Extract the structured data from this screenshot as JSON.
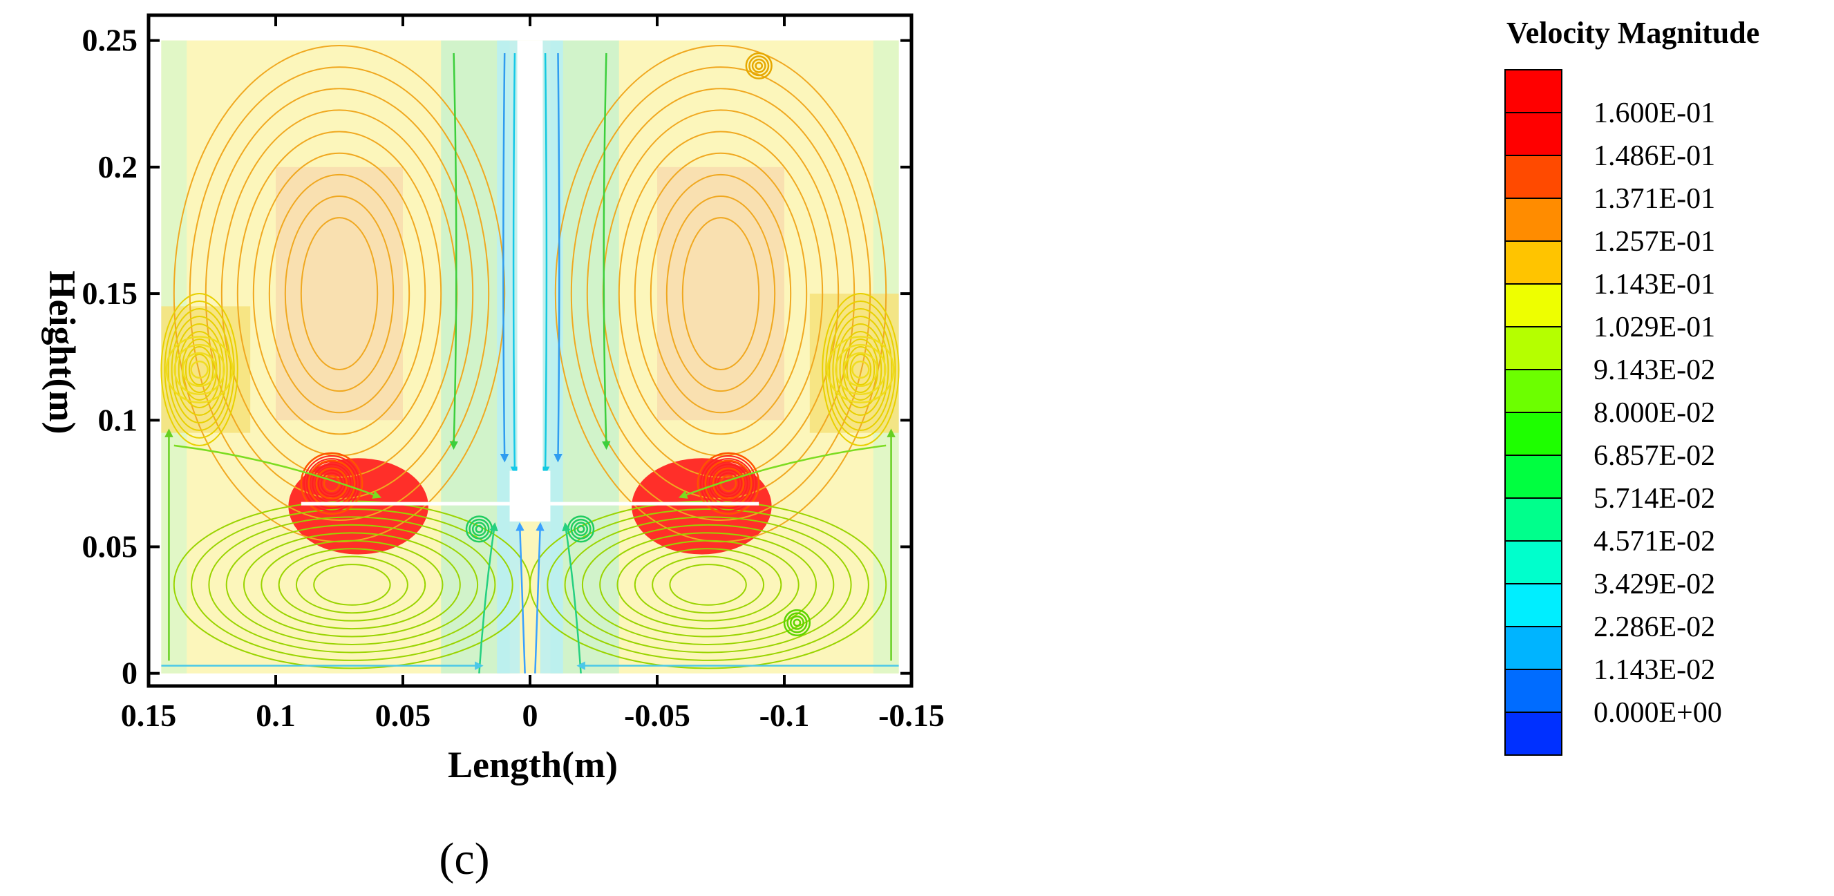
{
  "panel_label": "(c)",
  "chart_data": {
    "type": "heatmap",
    "subtype": "velocity-magnitude contour with streamlines",
    "xlabel": "Length(m)",
    "ylabel": "Height(m)",
    "xlim": [
      0.15,
      -0.15
    ],
    "ylim": [
      -0.005,
      0.26
    ],
    "x_ticks": [
      {
        "value": 0.15,
        "label": "0.15"
      },
      {
        "value": 0.1,
        "label": "0.1"
      },
      {
        "value": 0.05,
        "label": "0.05"
      },
      {
        "value": 0,
        "label": "0"
      },
      {
        "value": -0.05,
        "label": "-0.05"
      },
      {
        "value": -0.1,
        "label": "-0.1"
      },
      {
        "value": -0.15,
        "label": "-0.15"
      }
    ],
    "y_ticks": [
      {
        "value": 0,
        "label": "0"
      },
      {
        "value": 0.05,
        "label": "0.05"
      },
      {
        "value": 0.1,
        "label": "0.1"
      },
      {
        "value": 0.15,
        "label": "0.15"
      },
      {
        "value": 0.2,
        "label": "0.2"
      },
      {
        "value": 0.25,
        "label": "0.25"
      }
    ],
    "legend": {
      "title": "Velocity Magnitude",
      "placement": "right",
      "levels": [
        {
          "label": "1.600E-01",
          "color": "#ff0000"
        },
        {
          "label": "1.486E-01",
          "color": "#ff4a00"
        },
        {
          "label": "1.371E-01",
          "color": "#ff8c00"
        },
        {
          "label": "1.257E-01",
          "color": "#ffc400"
        },
        {
          "label": "1.143E-01",
          "color": "#eeff00"
        },
        {
          "label": "1.029E-01",
          "color": "#b5ff00"
        },
        {
          "label": "9.143E-02",
          "color": "#6cff00"
        },
        {
          "label": "8.000E-02",
          "color": "#1eff00"
        },
        {
          "label": "6.857E-02",
          "color": "#00ff40"
        },
        {
          "label": "5.714E-02",
          "color": "#00ff8c"
        },
        {
          "label": "4.571E-02",
          "color": "#00ffcc"
        },
        {
          "label": "3.429E-02",
          "color": "#00eeff"
        },
        {
          "label": "2.286E-02",
          "color": "#00b4ff"
        },
        {
          "label": "1.143E-02",
          "color": "#006cff"
        },
        {
          "label": "0.000E+00",
          "color": "#0030ff"
        }
      ],
      "top_color": "#ff0000"
    },
    "domain": {
      "x": [
        0.145,
        -0.145
      ],
      "y": [
        0,
        0.25
      ]
    },
    "shaft": {
      "x": [
        0.005,
        -0.005
      ],
      "y": [
        0.07,
        0.25
      ]
    },
    "hub": {
      "x": [
        0.008,
        -0.008
      ],
      "y": [
        0.06,
        0.08
      ]
    },
    "impeller_blades": [
      {
        "x": [
          0.09,
          0.008
        ],
        "y": 0.067
      },
      {
        "x": [
          -0.008,
          -0.09
        ],
        "y": 0.067
      }
    ],
    "regions": [
      {
        "x": [
          0.145,
          0.005
        ],
        "y": [
          0,
          0.25
        ],
        "color": "#fbf6bb"
      },
      {
        "x": [
          -0.005,
          -0.145
        ],
        "y": [
          0,
          0.25
        ],
        "color": "#fbf6bb"
      },
      {
        "x": [
          0.035,
          0.008
        ],
        "y": [
          0,
          0.25
        ],
        "color": "#c9f2cc"
      },
      {
        "x": [
          -0.008,
          -0.035
        ],
        "y": [
          0,
          0.25
        ],
        "color": "#c9f2cc"
      },
      {
        "x": [
          0.013,
          0.004
        ],
        "y": [
          0,
          0.25
        ],
        "color": "#b8eef5"
      },
      {
        "x": [
          -0.004,
          -0.013
        ],
        "y": [
          0,
          0.25
        ],
        "color": "#b8eef5"
      },
      {
        "x": [
          0.145,
          0.135
        ],
        "y": [
          0,
          0.25
        ],
        "color": "#dcf7c8"
      },
      {
        "x": [
          -0.135,
          -0.145
        ],
        "y": [
          0,
          0.25
        ],
        "color": "#dcf7c8"
      },
      {
        "x": [
          0.145,
          0.11
        ],
        "y": [
          0.095,
          0.145
        ],
        "color": "#f6e27a"
      },
      {
        "x": [
          -0.11,
          -0.145
        ],
        "y": [
          0.095,
          0.15
        ],
        "color": "#f6e27a"
      },
      {
        "x": [
          0.1,
          0.05
        ],
        "y": [
          0.1,
          0.2
        ],
        "color": "#f8dcae"
      },
      {
        "x": [
          -0.05,
          -0.1
        ],
        "y": [
          0.1,
          0.2
        ],
        "color": "#f8dcae"
      }
    ],
    "high_velocity_zones": [
      {
        "x": [
          0.095,
          0.04
        ],
        "y": [
          0.047,
          0.085
        ],
        "color": "#ff1a1a"
      },
      {
        "x": [
          -0.04,
          -0.095
        ],
        "y": [
          0.047,
          0.085
        ],
        "color": "#ff1a1a"
      }
    ],
    "vortices": [
      {
        "cx": 0.078,
        "cy": 0.075,
        "r": 0.012,
        "color": "#ff5500"
      },
      {
        "cx": -0.078,
        "cy": 0.075,
        "r": 0.012,
        "color": "#ff5500"
      },
      {
        "cx": 0.13,
        "cy": 0.12,
        "r": 0.013,
        "color": "#f0dc20"
      },
      {
        "cx": -0.13,
        "cy": 0.12,
        "r": 0.013,
        "color": "#f0dc20"
      },
      {
        "cx": -0.09,
        "cy": 0.24,
        "r": 0.005,
        "color": "#e6a800"
      },
      {
        "cx": -0.105,
        "cy": 0.02,
        "r": 0.005,
        "color": "#5cd400"
      },
      {
        "cx": 0.02,
        "cy": 0.057,
        "r": 0.005,
        "color": "#20cc60"
      },
      {
        "cx": -0.02,
        "cy": 0.057,
        "r": 0.005,
        "color": "#20cc60"
      }
    ],
    "streamline_groups": [
      {
        "color": "#f0a820",
        "cx": 0.075,
        "cy": 0.15,
        "rx": [
          0.015,
          0.065
        ],
        "ry": [
          0.03,
          0.098
        ]
      },
      {
        "color": "#f0a820",
        "cx": -0.075,
        "cy": 0.15,
        "rx": [
          0.015,
          0.065
        ],
        "ry": [
          0.03,
          0.098
        ]
      },
      {
        "color": "#9ad400",
        "cx": 0.07,
        "cy": 0.035,
        "rx": [
          0.015,
          0.07
        ],
        "ry": [
          0.008,
          0.033
        ]
      },
      {
        "color": "#9ad400",
        "cx": -0.07,
        "cy": 0.035,
        "rx": [
          0.015,
          0.07
        ],
        "ry": [
          0.008,
          0.033
        ]
      },
      {
        "color": "#e8d000",
        "cx": 0.13,
        "cy": 0.12,
        "rx": [
          0.004,
          0.015
        ],
        "ry": [
          0.006,
          0.03
        ]
      },
      {
        "color": "#e8d000",
        "cx": -0.13,
        "cy": 0.12,
        "rx": [
          0.004,
          0.015
        ],
        "ry": [
          0.006,
          0.03
        ]
      },
      {
        "color": "#ff2020",
        "cx": 0.078,
        "cy": 0.075,
        "rx": [
          0.003,
          0.012
        ],
        "ry": [
          0.003,
          0.012
        ]
      },
      {
        "color": "#ff2020",
        "cx": -0.078,
        "cy": 0.075,
        "rx": [
          0.003,
          0.012
        ],
        "ry": [
          0.003,
          0.012
        ]
      }
    ],
    "streamline_paths": [
      {
        "color": "#16c9e8",
        "points": [
          [
            0.006,
            0.245
          ],
          [
            0.007,
            0.16
          ],
          [
            0.006,
            0.08
          ]
        ]
      },
      {
        "color": "#2f9cf0",
        "points": [
          [
            0.01,
            0.245
          ],
          [
            0.011,
            0.16
          ],
          [
            0.01,
            0.085
          ]
        ]
      },
      {
        "color": "#14c9e0",
        "points": [
          [
            -0.006,
            0.245
          ],
          [
            -0.007,
            0.16
          ],
          [
            -0.006,
            0.08
          ]
        ]
      },
      {
        "color": "#2f9cf0",
        "points": [
          [
            -0.011,
            0.245
          ],
          [
            -0.012,
            0.16
          ],
          [
            -0.011,
            0.085
          ]
        ]
      },
      {
        "color": "#3aa0ff",
        "points": [
          [
            0.002,
            0.0
          ],
          [
            0.003,
            0.03
          ],
          [
            0.004,
            0.058
          ]
        ]
      },
      {
        "color": "#3aa0ff",
        "points": [
          [
            -0.002,
            0.0
          ],
          [
            -0.003,
            0.03
          ],
          [
            -0.004,
            0.058
          ]
        ]
      },
      {
        "color": "#24d080",
        "points": [
          [
            0.02,
            0.0
          ],
          [
            0.018,
            0.03
          ],
          [
            0.014,
            0.058
          ]
        ]
      },
      {
        "color": "#24d080",
        "points": [
          [
            -0.02,
            0.0
          ],
          [
            -0.018,
            0.03
          ],
          [
            -0.014,
            0.058
          ]
        ]
      },
      {
        "color": "#3ccf3c",
        "points": [
          [
            0.03,
            0.245
          ],
          [
            0.028,
            0.16
          ],
          [
            0.03,
            0.09
          ]
        ]
      },
      {
        "color": "#3ccf3c",
        "points": [
          [
            -0.03,
            0.245
          ],
          [
            -0.028,
            0.16
          ],
          [
            -0.03,
            0.09
          ]
        ]
      },
      {
        "color": "#7cdc20",
        "points": [
          [
            0.14,
            0.09
          ],
          [
            0.1,
            0.085
          ],
          [
            0.06,
            0.07
          ]
        ]
      },
      {
        "color": "#7cdc20",
        "points": [
          [
            -0.14,
            0.09
          ],
          [
            -0.1,
            0.085
          ],
          [
            -0.06,
            0.07
          ]
        ]
      },
      {
        "color": "#66d020",
        "points": [
          [
            0.142,
            0.005
          ],
          [
            0.142,
            0.05
          ],
          [
            0.142,
            0.095
          ]
        ]
      },
      {
        "color": "#66d020",
        "points": [
          [
            -0.142,
            0.005
          ],
          [
            -0.142,
            0.05
          ],
          [
            -0.142,
            0.095
          ]
        ]
      },
      {
        "color": "#4ac8e8",
        "points": [
          [
            0.145,
            0.003
          ],
          [
            0.07,
            0.003
          ],
          [
            0.02,
            0.003
          ]
        ]
      },
      {
        "color": "#4ac8e8",
        "points": [
          [
            -0.145,
            0.003
          ],
          [
            -0.07,
            0.003
          ],
          [
            -0.02,
            0.003
          ]
        ]
      }
    ]
  }
}
